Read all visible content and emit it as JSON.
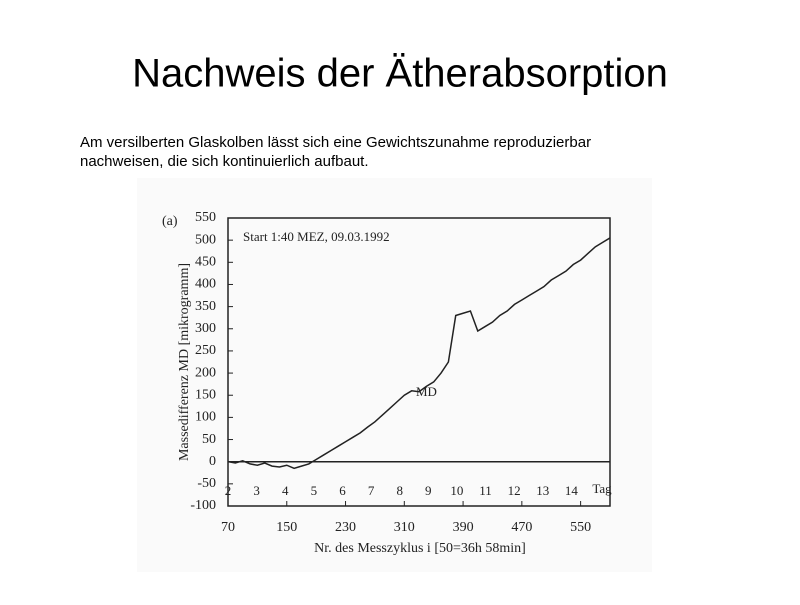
{
  "slide_title": "Nachweis der Ätherabsorption",
  "slide_text": [
    "Am versilberten Glaskolben lässt sich eine Gewichtszunahme reproduzierbar",
    "nachweisen, die sich kontinuierlich aufbaut."
  ],
  "chart_data": {
    "type": "line",
    "panel_label": "(a)",
    "annotation": "Start 1:40 MEZ, 09.03.1992",
    "series_label": "MD",
    "x_label": "Nr. des Messzyklus i [50=36h 58min]",
    "y_label": "Massedifferenz MD [mikrogramm]",
    "days": [
      "2",
      "3",
      "4",
      "5",
      "6",
      "7",
      "8",
      "9",
      "10",
      "11",
      "12",
      "13",
      "14"
    ],
    "day_unit": "Tag",
    "x": [
      70,
      80,
      90,
      100,
      110,
      120,
      130,
      140,
      150,
      160,
      170,
      180,
      190,
      200,
      210,
      220,
      230,
      240,
      250,
      260,
      270,
      280,
      290,
      300,
      310,
      320,
      330,
      340,
      350,
      360,
      370,
      380,
      390,
      400,
      410,
      420,
      430,
      440,
      450,
      460,
      470,
      480,
      490,
      500,
      510,
      520,
      530,
      540,
      550,
      560,
      570,
      580,
      590
    ],
    "values": [
      0,
      -3,
      2,
      -5,
      -8,
      -3,
      -10,
      -12,
      -8,
      -15,
      -10,
      -5,
      5,
      15,
      25,
      35,
      45,
      55,
      65,
      78,
      90,
      105,
      120,
      135,
      150,
      160,
      158,
      170,
      180,
      200,
      225,
      330,
      335,
      340,
      295,
      305,
      315,
      330,
      340,
      355,
      365,
      375,
      385,
      395,
      410,
      420,
      430,
      445,
      455,
      470,
      485,
      495,
      505
    ],
    "color": "#222222",
    "xlim": [
      70,
      590
    ],
    "xticks": [
      70,
      150,
      230,
      310,
      390,
      470,
      550
    ],
    "ylim": [
      -100,
      550
    ],
    "yticks": [
      -100,
      -50,
      0,
      50,
      100,
      150,
      200,
      250,
      300,
      350,
      400,
      450,
      500,
      550
    ],
    "zero_line": true
  }
}
